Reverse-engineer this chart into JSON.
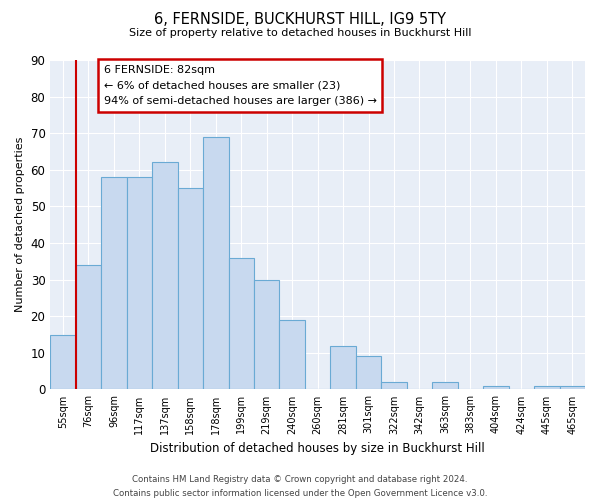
{
  "title": "6, FERNSIDE, BUCKHURST HILL, IG9 5TY",
  "subtitle": "Size of property relative to detached houses in Buckhurst Hill",
  "xlabel": "Distribution of detached houses by size in Buckhurst Hill",
  "ylabel": "Number of detached properties",
  "bar_labels": [
    "55sqm",
    "76sqm",
    "96sqm",
    "117sqm",
    "137sqm",
    "158sqm",
    "178sqm",
    "199sqm",
    "219sqm",
    "240sqm",
    "260sqm",
    "281sqm",
    "301sqm",
    "322sqm",
    "342sqm",
    "363sqm",
    "383sqm",
    "404sqm",
    "424sqm",
    "445sqm",
    "465sqm"
  ],
  "bar_heights": [
    15,
    34,
    58,
    58,
    62,
    55,
    69,
    36,
    30,
    19,
    0,
    12,
    9,
    2,
    0,
    2,
    0,
    1,
    0,
    1,
    1
  ],
  "bar_color": "#c8d9ef",
  "bar_edge_color": "#6aaad4",
  "vline_x_index": 1,
  "vline_color": "#cc0000",
  "ylim": [
    0,
    90
  ],
  "yticks": [
    0,
    10,
    20,
    30,
    40,
    50,
    60,
    70,
    80,
    90
  ],
  "annotation_title": "6 FERNSIDE: 82sqm",
  "annotation_line1": "← 6% of detached houses are smaller (23)",
  "annotation_line2": "94% of semi-detached houses are larger (386) →",
  "annotation_box_color": "#ffffff",
  "annotation_border_color": "#cc0000",
  "footer_line1": "Contains HM Land Registry data © Crown copyright and database right 2024.",
  "footer_line2": "Contains public sector information licensed under the Open Government Licence v3.0.",
  "bg_color": "#ffffff",
  "plot_bg_color": "#e8eef7",
  "grid_color": "#ffffff"
}
